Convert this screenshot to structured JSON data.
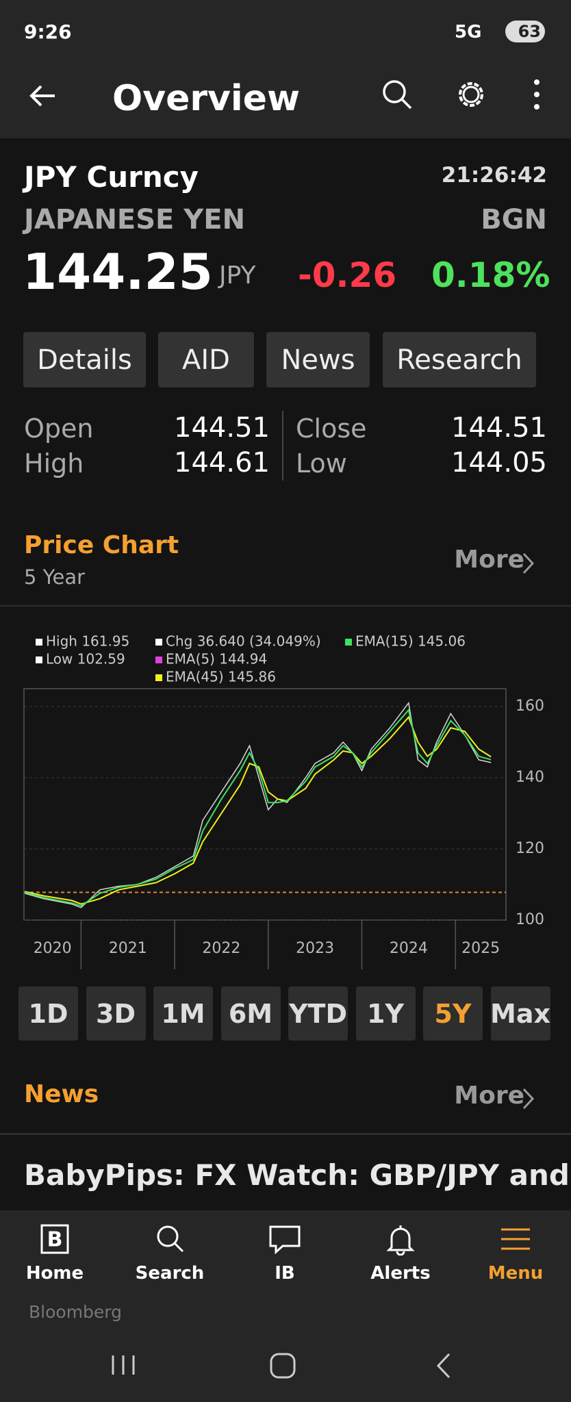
{
  "status_bar": {
    "time": "9:26",
    "network": "5G",
    "battery": "63"
  },
  "header": {
    "title": "Overview"
  },
  "quote": {
    "ticker": "JPY Curncy",
    "time": "21:26:42",
    "name": "JAPANESE YEN",
    "source": "BGN",
    "price": "144.25",
    "currency": "JPY",
    "change": "-0.26",
    "change_pct": "0.18%"
  },
  "tabs": [
    "Details",
    "AID",
    "News",
    "Research"
  ],
  "stats": {
    "open_label": "Open",
    "open": "144.51",
    "high_label": "High",
    "high": "144.61",
    "close_label": "Close",
    "close": "144.51",
    "low_label": "Low",
    "low": "144.05"
  },
  "price_chart_section": {
    "title": "Price Chart",
    "subtitle": "5 Year",
    "more": "More"
  },
  "chart_data": {
    "type": "line",
    "legend": [
      {
        "label": "High 161.95",
        "color": "#ffffff"
      },
      {
        "label": "Low 102.59",
        "color": "#ffffff"
      },
      {
        "label": "Chg 36.640 (34.049%)",
        "color": "#ffffff"
      },
      {
        "label": "EMA(5) 144.94",
        "color": "#e040e0"
      },
      {
        "label": "EMA(45) 145.86",
        "color": "#f0f020"
      },
      {
        "label": "EMA(15) 145.06",
        "color": "#40e060"
      }
    ],
    "x": [
      2020.4,
      2020.6,
      2020.9,
      2021.0,
      2021.2,
      2021.4,
      2021.6,
      2021.8,
      2022.0,
      2022.2,
      2022.3,
      2022.5,
      2022.7,
      2022.8,
      2022.9,
      2023.0,
      2023.1,
      2023.2,
      2023.4,
      2023.5,
      2023.7,
      2023.8,
      2023.9,
      2024.0,
      2024.1,
      2024.3,
      2024.5,
      2024.6,
      2024.7,
      2024.8,
      2024.95,
      2025.1,
      2025.25,
      2025.38
    ],
    "series": [
      {
        "color": "#d8d8d8",
        "values": [
          107.5,
          106,
          104.5,
          103.5,
          108.5,
          109.5,
          110,
          112,
          115,
          118,
          128,
          136,
          144,
          149,
          140,
          131,
          134,
          133,
          140,
          144,
          147,
          150,
          147,
          142,
          148,
          154,
          161,
          145,
          143,
          150,
          158,
          152,
          145,
          144.25
        ]
      },
      {
        "color": "#f0f020",
        "values": [
          108,
          106.8,
          105.5,
          104.5,
          106,
          108.5,
          109.5,
          110.5,
          113,
          116,
          122,
          130,
          138,
          144,
          143,
          136,
          134,
          133.5,
          137,
          141,
          145,
          147.5,
          147,
          144,
          146,
          151,
          157,
          150,
          146,
          148,
          154,
          153,
          148,
          145.86
        ]
      },
      {
        "color": "#40e060",
        "values": [
          107.8,
          106.3,
          104.8,
          104,
          107.5,
          109.2,
          110,
          111.5,
          114.5,
          117,
          125,
          134,
          142,
          147,
          142,
          133,
          133,
          133.5,
          139,
          143,
          146,
          149,
          147,
          143,
          147,
          153,
          159,
          147,
          144,
          149,
          156,
          152,
          146,
          145.06
        ]
      }
    ],
    "reference_line": 107.8,
    "reference_color": "#e08a30",
    "xlim": [
      2020.39,
      2025.54
    ],
    "xticks": [
      2020,
      2021,
      2022,
      2023,
      2024,
      2025
    ],
    "ylim": [
      100,
      165
    ],
    "yticks": [
      100,
      120,
      140,
      160
    ],
    "grid": true
  },
  "range_buttons": [
    "1D",
    "3D",
    "1M",
    "6M",
    "YTD",
    "1Y",
    "5Y",
    "Max"
  ],
  "range_selected": 6,
  "news": {
    "title": "News",
    "more": "More",
    "headline": "BabyPips: FX Watch: GBP/JPY and"
  },
  "nav": [
    "Home",
    "Search",
    "IB",
    "Alerts",
    "Menu"
  ],
  "nav_selected": 4,
  "watermark": "Bloomberg"
}
